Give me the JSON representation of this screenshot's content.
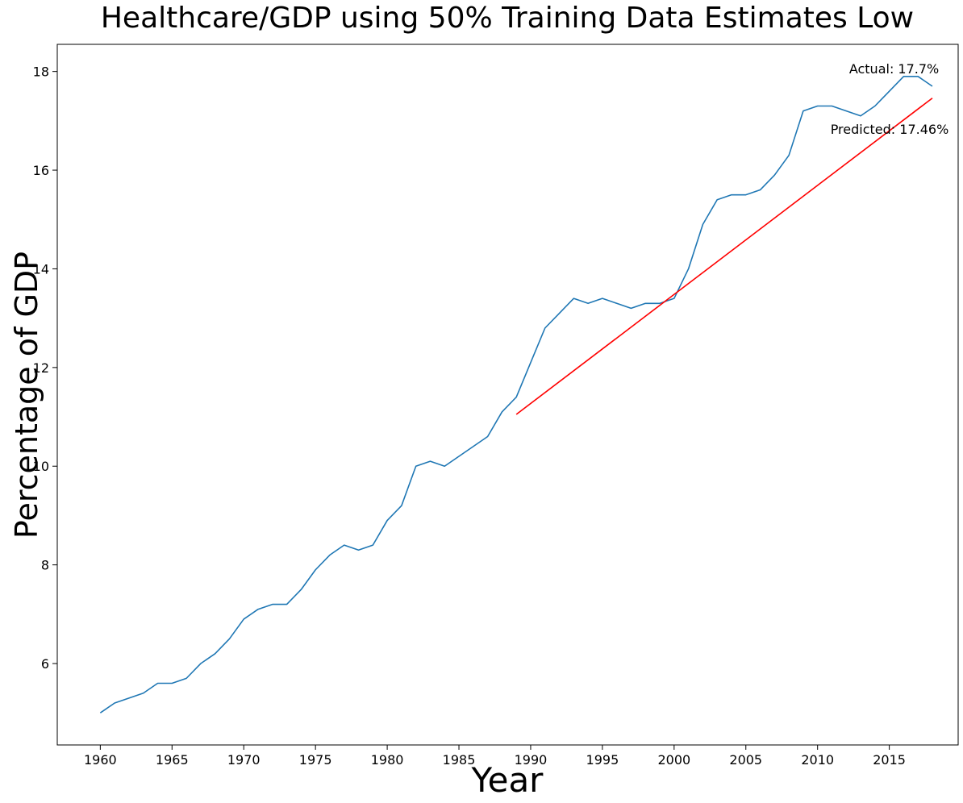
{
  "chart_data": {
    "type": "line",
    "title": "Healthcare/GDP using 50% Training Data Estimates Low",
    "xlabel": "Year",
    "ylabel": "Percentage of GDP",
    "xlim": [
      1957,
      2019.8
    ],
    "ylim": [
      4.35,
      18.55
    ],
    "xticks": [
      1960,
      1965,
      1970,
      1975,
      1980,
      1985,
      1990,
      1995,
      2000,
      2005,
      2010,
      2015
    ],
    "yticks": [
      6,
      8,
      10,
      12,
      14,
      16,
      18
    ],
    "grid": false,
    "series": [
      {
        "color": "#1f77b4",
        "x": [
          1960,
          1961,
          1962,
          1963,
          1964,
          1965,
          1966,
          1967,
          1968,
          1969,
          1970,
          1971,
          1972,
          1973,
          1974,
          1975,
          1976,
          1977,
          1978,
          1979,
          1980,
          1981,
          1982,
          1983,
          1984,
          1985,
          1986,
          1987,
          1988,
          1989,
          1990,
          1991,
          1992,
          1993,
          1994,
          1995,
          1996,
          1997,
          1998,
          1999,
          2000,
          2001,
          2002,
          2003,
          2004,
          2005,
          2006,
          2007,
          2008,
          2009,
          2010,
          2011,
          2012,
          2013,
          2014,
          2015,
          2016,
          2017,
          2018
        ],
        "y": [
          5.0,
          5.2,
          5.3,
          5.4,
          5.6,
          5.6,
          5.7,
          6.0,
          6.2,
          6.5,
          6.9,
          7.1,
          7.2,
          7.2,
          7.5,
          7.9,
          8.2,
          8.4,
          8.3,
          8.4,
          8.9,
          9.2,
          10.0,
          10.1,
          10.0,
          10.2,
          10.4,
          10.6,
          11.1,
          11.4,
          12.1,
          12.8,
          13.1,
          13.4,
          13.3,
          13.4,
          13.3,
          13.2,
          13.3,
          13.3,
          13.4,
          14.0,
          14.9,
          15.4,
          15.5,
          15.5,
          15.6,
          15.9,
          16.3,
          17.2,
          17.3,
          17.3,
          17.2,
          17.1,
          17.3,
          17.6,
          17.9,
          17.9,
          17.7
        ]
      },
      {
        "color": "#ff0000",
        "x": [
          1989,
          2018
        ],
        "y": [
          11.05,
          17.46
        ]
      }
    ],
    "annotations": [
      {
        "text": "Actual: 17.7%",
        "x": 2012.2,
        "y": 17.96
      },
      {
        "text": "Predicted: 17.46%",
        "x": 2010.9,
        "y": 16.74
      }
    ]
  }
}
